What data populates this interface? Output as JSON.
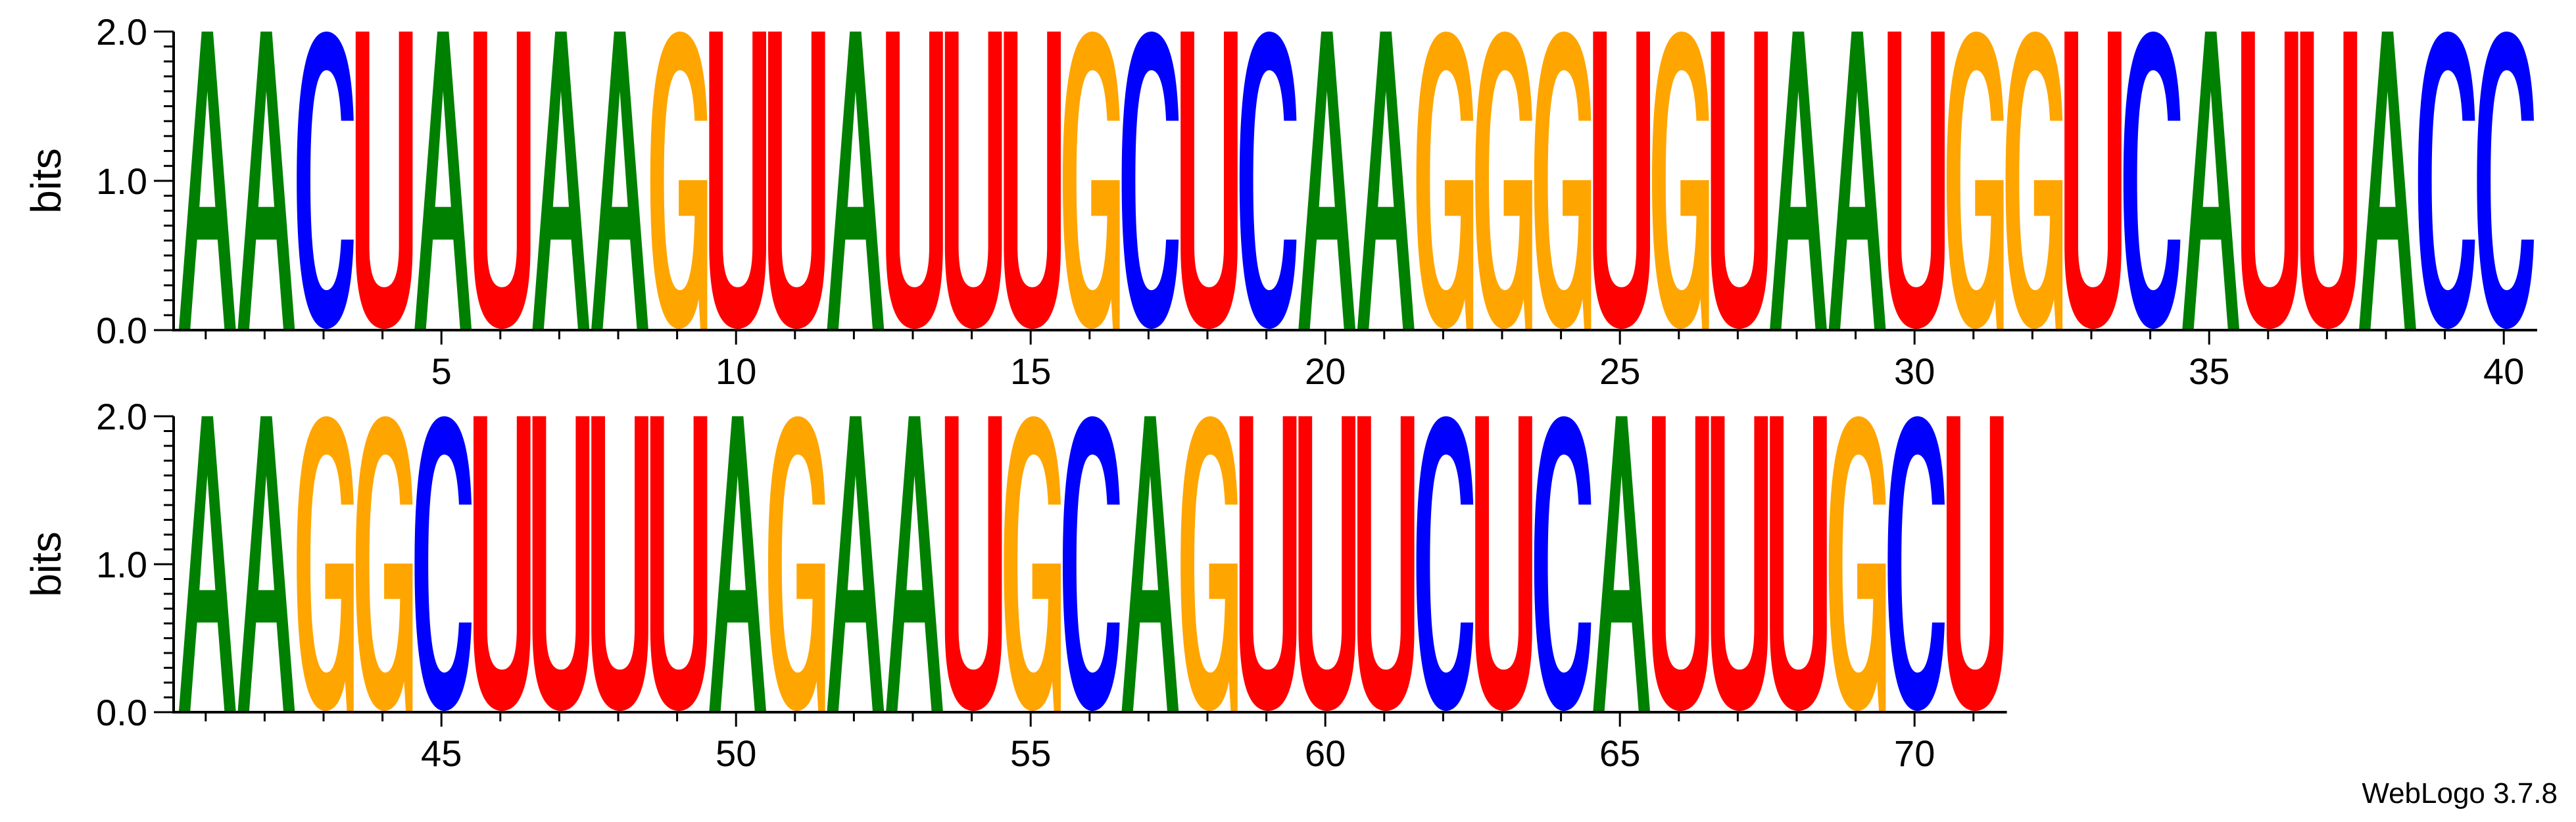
{
  "chart_data": {
    "type": "sequence-logo",
    "ylabel": "bits",
    "ylim": [
      0,
      2
    ],
    "y_ticks": [
      "0.0",
      "1.0",
      "2.0"
    ],
    "color_scheme": {
      "A": "#008000",
      "C": "#0000ff",
      "G": "#ffa500",
      "U": "#ff0000"
    },
    "rows": [
      {
        "start": 1,
        "letters": "AACUAUAAGUUAUUUGCUCAAGGGUGUAAUGGUCAUUACC",
        "x_tick_labels": [
          "5",
          "10",
          "15",
          "20",
          "25",
          "30",
          "35",
          "40"
        ]
      },
      {
        "start": 41,
        "letters": "AAGGCUUUUAGAAUGCAGUUUCUCAUUUGCU",
        "x_tick_labels": [
          "45",
          "50",
          "55",
          "60",
          "65",
          "70"
        ]
      }
    ],
    "bits_per_position": 2.0
  },
  "footer": {
    "text": "WebLogo 3.7.8"
  }
}
